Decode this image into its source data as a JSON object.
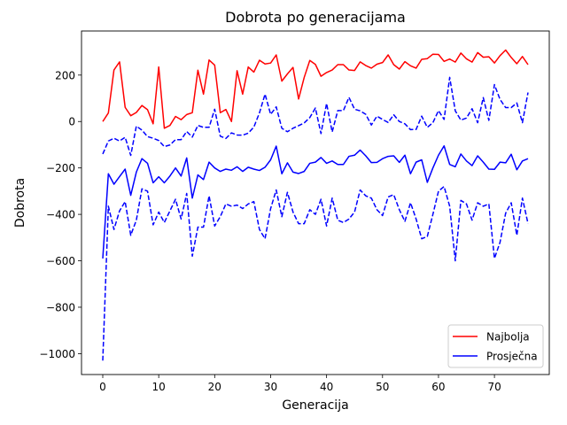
{
  "chart_data": {
    "type": "line",
    "title": "Dobrota po generacijama",
    "xlabel": "Generacija",
    "ylabel": "Dobrota",
    "xlim": [
      -3.8,
      79.8
    ],
    "ylim": [
      -1090,
      390
    ],
    "xticks": [
      0,
      10,
      20,
      30,
      40,
      50,
      60,
      70
    ],
    "yticks": [
      -1000,
      -800,
      -600,
      -400,
      -200,
      0,
      200
    ],
    "tick_labels_x": [
      "0",
      "10",
      "20",
      "30",
      "40",
      "50",
      "60",
      "70"
    ],
    "tick_labels_y": [
      "−1000",
      "−800",
      "−600",
      "−400",
      "−200",
      "0",
      "200"
    ],
    "grid": false,
    "legend_position": "lower right",
    "series": [
      {
        "name": "Najbolja",
        "color": "#ff0000",
        "style": "solid",
        "in_legend": true,
        "values": [
          0,
          37,
          222,
          257,
          61,
          25,
          39,
          69,
          51,
          -10,
          235,
          -29,
          -17,
          22,
          8,
          30,
          38,
          221,
          118,
          265,
          243,
          38,
          52,
          0,
          219,
          118,
          235,
          213,
          264,
          248,
          252,
          287,
          174,
          205,
          233,
          97,
          190,
          263,
          246,
          195,
          211,
          222,
          245,
          245,
          222,
          220,
          257,
          241,
          230,
          247,
          254,
          287,
          245,
          226,
          258,
          240,
          230,
          268,
          271,
          290,
          289,
          259,
          269,
          256,
          295,
          270,
          256,
          297,
          277,
          279,
          252,
          284,
          308,
          276,
          249,
          280,
          245
        ]
      },
      {
        "name": "Prosječna",
        "color": "#0000ff",
        "style": "solid",
        "in_legend": true,
        "values": [
          -590,
          -225,
          -270,
          -237,
          -205,
          -318,
          -218,
          -160,
          -180,
          -264,
          -238,
          -264,
          -235,
          -200,
          -235,
          -157,
          -330,
          -230,
          -250,
          -175,
          -200,
          -215,
          -205,
          -210,
          -195,
          -215,
          -197,
          -205,
          -211,
          -197,
          -165,
          -106,
          -225,
          -178,
          -218,
          -224,
          -215,
          -180,
          -175,
          -155,
          -180,
          -170,
          -185,
          -185,
          -150,
          -145,
          -123,
          -148,
          -177,
          -176,
          -160,
          -150,
          -148,
          -176,
          -145,
          -225,
          -175,
          -165,
          -262,
          -200,
          -145,
          -105,
          -185,
          -195,
          -140,
          -170,
          -190,
          -148,
          -175,
          -205,
          -206,
          -175,
          -178,
          -141,
          -208,
          -170,
          -160
        ]
      },
      {
        "name": "",
        "color": "#0000ff",
        "style": "dashed",
        "in_legend": false,
        "values": [
          -140,
          -84,
          -72,
          -84,
          -68,
          -146,
          -20,
          -37,
          -65,
          -72,
          -82,
          -108,
          -101,
          -78,
          -78,
          -43,
          -67,
          -17,
          -25,
          -25,
          53,
          -63,
          -73,
          -49,
          -58,
          -59,
          -50,
          -24,
          37,
          118,
          31,
          63,
          -29,
          -44,
          -29,
          -18,
          -6,
          17,
          58,
          -52,
          78,
          -45,
          47,
          47,
          104,
          53,
          46,
          31,
          -15,
          23,
          9,
          -4,
          29,
          0,
          -10,
          -35,
          -34,
          23,
          -25,
          -5,
          47,
          9,
          190,
          46,
          6,
          15,
          55,
          -5,
          103,
          5,
          159,
          95,
          60,
          60,
          80,
          -5,
          125
        ]
      },
      {
        "name": "",
        "color": "#0000ff",
        "style": "dashed",
        "in_legend": false,
        "values": [
          -1030,
          -365,
          -465,
          -385,
          -345,
          -490,
          -425,
          -290,
          -300,
          -445,
          -390,
          -435,
          -385,
          -335,
          -420,
          -310,
          -580,
          -455,
          -455,
          -320,
          -450,
          -410,
          -355,
          -365,
          -360,
          -375,
          -355,
          -345,
          -465,
          -505,
          -375,
          -295,
          -410,
          -305,
          -390,
          -440,
          -440,
          -380,
          -400,
          -335,
          -450,
          -330,
          -425,
          -435,
          -420,
          -390,
          -295,
          -320,
          -330,
          -380,
          -405,
          -325,
          -315,
          -380,
          -430,
          -350,
          -420,
          -505,
          -495,
          -400,
          -300,
          -280,
          -365,
          -600,
          -340,
          -355,
          -425,
          -350,
          -365,
          -355,
          -590,
          -520,
          -395,
          -350,
          -490,
          -330,
          -440
        ]
      }
    ]
  }
}
